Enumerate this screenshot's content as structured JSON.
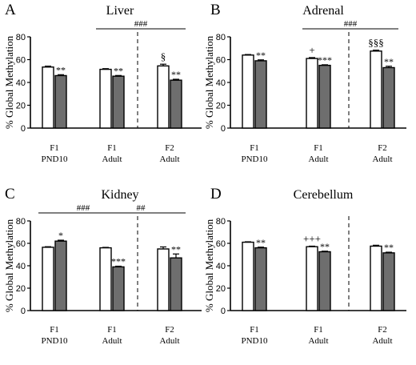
{
  "figure": {
    "y_axis_label": "% Global Methylation",
    "colors": {
      "control": "#ffffff",
      "treated": "#6e6e6e",
      "stroke": "#000000"
    }
  },
  "chart_data": [
    {
      "type": "bar",
      "letter": "A",
      "title": "Liver",
      "ylabel": "% Global Methylation",
      "ylim": [
        0,
        80
      ],
      "yticks": [
        0,
        20,
        40,
        60,
        80
      ],
      "groups": [
        {
          "label_line1": "F1",
          "label_line2": "PND10",
          "control": 53.5,
          "control_err": 0.8,
          "treated": 46.0,
          "treated_err": 0.8,
          "control_marker": "",
          "treated_marker": "**"
        },
        {
          "label_line1": "F1",
          "label_line2": "Adult",
          "control": 51.5,
          "control_err": 0.6,
          "treated": 45.5,
          "treated_err": 0.6,
          "control_marker": "",
          "treated_marker": "**"
        },
        {
          "label_line1": "F2",
          "label_line2": "Adult",
          "control": 54.5,
          "control_err": 1.5,
          "treated": 42.0,
          "treated_err": 0.8,
          "control_marker": "§",
          "treated_marker": "**"
        }
      ],
      "dashed_after_group": 1,
      "brackets": [
        {
          "from": 1,
          "to": 2,
          "label": "###"
        }
      ]
    },
    {
      "type": "bar",
      "letter": "B",
      "title": "Adrenal",
      "ylabel": "% Global Methylation",
      "ylim": [
        0,
        80
      ],
      "yticks": [
        0,
        20,
        40,
        60,
        80
      ],
      "groups": [
        {
          "label_line1": "F1",
          "label_line2": "PND10",
          "control": 64.0,
          "control_err": 0.5,
          "treated": 59.0,
          "treated_err": 0.8,
          "control_marker": "",
          "treated_marker": "**"
        },
        {
          "label_line1": "F1",
          "label_line2": "Adult",
          "control": 61.0,
          "control_err": 0.8,
          "treated": 55.0,
          "treated_err": 0.5,
          "control_marker": "+",
          "treated_marker": "***"
        },
        {
          "label_line1": "F2",
          "label_line2": "Adult",
          "control": 67.5,
          "control_err": 0.8,
          "treated": 53.0,
          "treated_err": 1.2,
          "control_marker": "§§§",
          "treated_marker": "**"
        }
      ],
      "dashed_after_group": 1,
      "brackets": [
        {
          "from": 1,
          "to": 2,
          "label": "###"
        }
      ]
    },
    {
      "type": "bar",
      "letter": "C",
      "title": "Kidney",
      "ylabel": "% Global Methylation",
      "ylim": [
        0,
        80
      ],
      "yticks": [
        0,
        20,
        40,
        60,
        80
      ],
      "groups": [
        {
          "label_line1": "F1",
          "label_line2": "PND10",
          "control": 56.5,
          "control_err": 0.5,
          "treated": 62.0,
          "treated_err": 0.8,
          "control_marker": "",
          "treated_marker": "*"
        },
        {
          "label_line1": "F1",
          "label_line2": "Adult",
          "control": 56.0,
          "control_err": 0.4,
          "treated": 39.0,
          "treated_err": 0.6,
          "control_marker": "",
          "treated_marker": "***"
        },
        {
          "label_line1": "F2",
          "label_line2": "Adult",
          "control": 55.0,
          "control_err": 1.8,
          "treated": 47.0,
          "treated_err": 3.5,
          "control_marker": "",
          "treated_marker": "**"
        }
      ],
      "dashed_after_group": 1,
      "brackets": [
        {
          "from": 0,
          "to": 1,
          "label": "###"
        },
        {
          "from": 1,
          "to": 2,
          "label": "##"
        }
      ]
    },
    {
      "type": "bar",
      "letter": "D",
      "title": "Cerebellum",
      "ylabel": "% Global Methylation",
      "ylim": [
        0,
        80
      ],
      "yticks": [
        0,
        20,
        40,
        60,
        80
      ],
      "groups": [
        {
          "label_line1": "F1",
          "label_line2": "PND10",
          "control": 61.0,
          "control_err": 0.4,
          "treated": 56.0,
          "treated_err": 0.6,
          "control_marker": "",
          "treated_marker": "**"
        },
        {
          "label_line1": "F1",
          "label_line2": "Adult",
          "control": 57.0,
          "control_err": 0.5,
          "treated": 52.5,
          "treated_err": 0.5,
          "control_marker": "+++",
          "treated_marker": "**"
        },
        {
          "label_line1": "F2",
          "label_line2": "Adult",
          "control": 57.5,
          "control_err": 0.8,
          "treated": 51.5,
          "treated_err": 0.6,
          "control_marker": "",
          "treated_marker": "**"
        }
      ],
      "dashed_after_group": 1,
      "brackets": []
    }
  ]
}
